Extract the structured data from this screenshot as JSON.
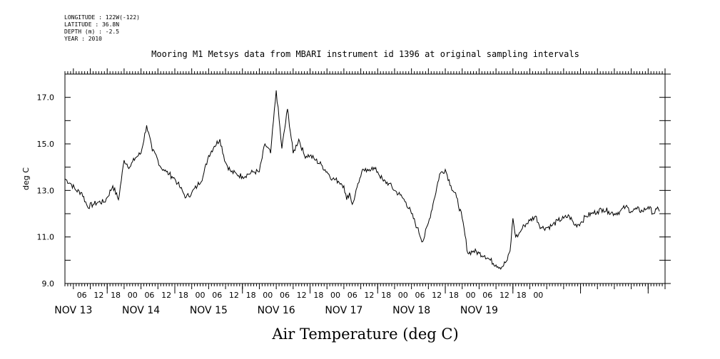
{
  "header": {
    "longitude": "LONGITUDE : 122W(-122)",
    "latitude": "LATITUDE : 36.8N",
    "depth": "DEPTH (m) : -2.5",
    "year": "YEAR : 2010"
  },
  "chart_data": {
    "type": "line",
    "title": "Mooring M1 Metsys data from MBARI instrument id 1396 at original sampling intervals",
    "xlabel": "Air Temperature (deg C)",
    "ylabel": "deg C",
    "ylim": [
      9.0,
      18.0
    ],
    "xlim_hours": [
      -15,
      198
    ],
    "y_ticks": [
      "9.0",
      "11.0",
      "13.0",
      "15.0",
      "17.0"
    ],
    "x_hour_ticks": [
      "06",
      "12",
      "18",
      "00",
      "06",
      "12",
      "18",
      "00",
      "06",
      "12",
      "18",
      "00",
      "06",
      "12",
      "18",
      "00",
      "06",
      "12",
      "18",
      "00",
      "06",
      "12",
      "18",
      "00",
      "06",
      "12",
      "18",
      "00"
    ],
    "day_labels": [
      "NOV 13",
      "NOV 14",
      "NOV 15",
      "NOV 16",
      "NOV 17",
      "NOV 18",
      "NOV 19"
    ],
    "grid": false,
    "series": [
      {
        "x_hours": [
          -15,
          -13,
          -11,
          -9,
          -7,
          -5,
          -3,
          -1,
          0,
          2,
          4,
          6,
          8,
          10,
          12,
          14,
          16,
          17,
          18,
          19,
          20,
          21,
          22,
          23,
          24,
          25,
          26,
          27,
          28,
          30,
          32,
          34,
          36,
          38,
          40,
          42,
          44,
          46,
          48,
          50,
          52,
          54,
          56,
          58,
          60,
          62,
          64,
          66,
          68,
          70,
          72,
          74,
          76,
          78,
          80,
          82,
          83,
          84,
          85,
          86,
          87,
          88,
          89,
          90,
          91,
          92,
          93,
          94,
          96,
          98,
          100,
          102,
          104,
          106,
          108,
          110,
          112,
          114,
          116,
          118,
          120,
          122,
          124,
          126,
          128,
          130,
          132,
          134,
          136,
          138,
          140,
          142,
          143,
          144,
          145,
          146,
          147,
          148,
          150,
          152,
          154,
          156,
          158,
          160,
          162,
          164,
          166,
          168,
          170,
          172,
          174,
          176,
          178,
          180,
          182,
          184,
          186,
          188,
          190,
          192,
          194,
          195,
          196
        ],
        "values": [
          13.5,
          13.3,
          13.0,
          12.9,
          12.3,
          12.4,
          12.5,
          12.5,
          12.7,
          13.2,
          12.6,
          14.3,
          14.0,
          14.4,
          14.6,
          15.8,
          14.7,
          14.6,
          14.3,
          14.0,
          13.9,
          13.8,
          13.7,
          13.6,
          13.5,
          13.3,
          13.1,
          12.9,
          12.7,
          12.9,
          13.2,
          13.6,
          14.5,
          14.9,
          15.2,
          14.2,
          13.8,
          13.7,
          13.6,
          13.7,
          13.8,
          13.8,
          15.0,
          14.6,
          17.3,
          14.8,
          16.5,
          14.6,
          15.2,
          14.5,
          14.5,
          14.3,
          14.1,
          13.8,
          13.5,
          13.4,
          13.3,
          13.2,
          12.6,
          12.9,
          12.4,
          12.8,
          13.3,
          13.6,
          13.9,
          13.8,
          13.9,
          14.0,
          13.8,
          13.4,
          13.3,
          13.0,
          12.8,
          12.5,
          12.0,
          11.4,
          10.8,
          11.6,
          12.6,
          13.7,
          13.9,
          13.2,
          12.7,
          11.8,
          10.3,
          10.4,
          10.3,
          10.2,
          10.0,
          9.8,
          9.7,
          10.0,
          10.4,
          11.8,
          11.0,
          11.1,
          11.3,
          11.5,
          11.7,
          11.9,
          11.4,
          11.4,
          11.5,
          11.7,
          11.8,
          11.9,
          11.5,
          11.6,
          11.9,
          12.0,
          12.1,
          12.2,
          12.1,
          12.0,
          12.1,
          12.3,
          12.1,
          12.2,
          12.1,
          12.3,
          12.0,
          12.2,
          12.1
        ]
      }
    ]
  }
}
